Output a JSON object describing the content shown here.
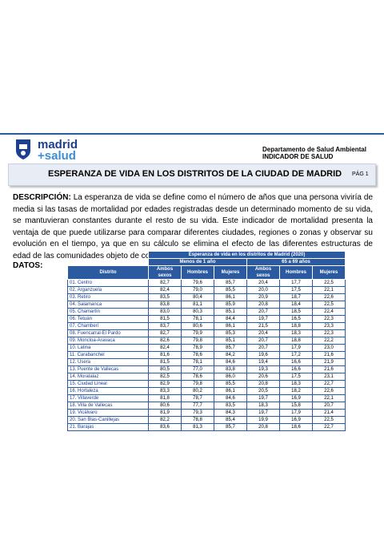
{
  "header": {
    "logo_line1": "madrid",
    "logo_line2": "+salud",
    "department": "Departamento de Salud Ambiental",
    "indicator": "INDICADOR DE SALUD"
  },
  "title": "ESPERANZA DE VIDA EN LOS DISTRITOS DE LA CIUDAD DE MADRID",
  "page": "PÁG 1",
  "description": {
    "label": "DESCRIPCIÓN:",
    "text": "La esperanza de vida se define como el número de años que una persona viviría de media si las tasas de mortalidad por edades registradas desde un determinado momento de su vida, se mantuvieran constantes durante el resto de su vida. Este indicador de mortalidad presenta la ventaja de que puede utilizarse para comparar diferentes ciudades, regiones o zonas y observar su evolución en el tiempo, ya que en su cálculo se elimina el efecto de las diferentes estructuras de edad de las comunidades objeto de comparación."
  },
  "data_label": "DATOS:",
  "table": {
    "caption": "Esperanza de vida en los distritos de Madrid (2020)",
    "groups": [
      "Menos de 1 año",
      "65 a 69 años"
    ],
    "columns": [
      "Distrito",
      "Ambos sexos",
      "Hombres",
      "Mujeres",
      "Ambos sexos",
      "Hombres",
      "Mujeres"
    ],
    "rows": [
      [
        "01. Centro",
        "82,7",
        "79,6",
        "85,7",
        "20,4",
        "17,7",
        "22,5"
      ],
      [
        "02. Arganzuela",
        "82,4",
        "79,0",
        "85,5",
        "20,0",
        "17,5",
        "22,1"
      ],
      [
        "03. Retiro",
        "83,5",
        "80,4",
        "86,1",
        "20,9",
        "18,7",
        "22,6"
      ],
      [
        "04. Salamanca",
        "83,8",
        "81,1",
        "85,9",
        "20,8",
        "18,4",
        "22,5"
      ],
      [
        "05. Chamartín",
        "83,0",
        "80,3",
        "85,1",
        "20,7",
        "18,5",
        "22,4"
      ],
      [
        "06. Tetuán",
        "81,5",
        "78,1",
        "84,4",
        "19,7",
        "16,5",
        "22,3"
      ],
      [
        "07. Chamberí",
        "83,7",
        "80,6",
        "86,1",
        "21,5",
        "18,8",
        "23,3"
      ],
      [
        "08. Fuencarral-El Pardo",
        "82,7",
        "79,9",
        "85,3",
        "20,4",
        "18,3",
        "22,3"
      ],
      [
        "09. Moncloa-Aravaca",
        "82,6",
        "79,8",
        "85,1",
        "20,7",
        "18,8",
        "22,2"
      ],
      [
        "10. Latina",
        "82,4",
        "78,9",
        "85,7",
        "20,7",
        "17,9",
        "23,0"
      ],
      [
        "11. Carabanchel",
        "81,6",
        "78,6",
        "84,2",
        "19,6",
        "17,2",
        "21,6"
      ],
      [
        "12. Usera",
        "81,5",
        "78,1",
        "84,6",
        "19,4",
        "16,6",
        "21,9"
      ],
      [
        "13. Puente de Vallecas",
        "80,5",
        "77,0",
        "83,8",
        "19,3",
        "16,6",
        "21,6"
      ],
      [
        "14. Moratalaz",
        "82,5",
        "78,6",
        "86,0",
        "20,6",
        "17,5",
        "23,1"
      ],
      [
        "15. Ciudad Lineal",
        "82,9",
        "79,8",
        "85,5",
        "20,8",
        "18,3",
        "22,7"
      ],
      [
        "16. Hortaleza",
        "83,3",
        "80,2",
        "86,1",
        "20,5",
        "18,2",
        "22,6"
      ],
      [
        "17. Villaverde",
        "81,8",
        "78,7",
        "84,6",
        "19,7",
        "16,9",
        "22,1"
      ],
      [
        "18. Villa de Vallecas",
        "80,6",
        "77,7",
        "83,5",
        "18,3",
        "15,8",
        "20,7"
      ],
      [
        "19. Vicálvaro",
        "81,9",
        "79,3",
        "84,3",
        "19,7",
        "17,9",
        "21,4"
      ],
      [
        "20. San Blas-Canillejas",
        "82,2",
        "78,8",
        "85,4",
        "19,9",
        "16,9",
        "22,5"
      ],
      [
        "21. Barajas",
        "83,6",
        "81,3",
        "85,7",
        "20,8",
        "18,6",
        "22,7"
      ]
    ]
  }
}
